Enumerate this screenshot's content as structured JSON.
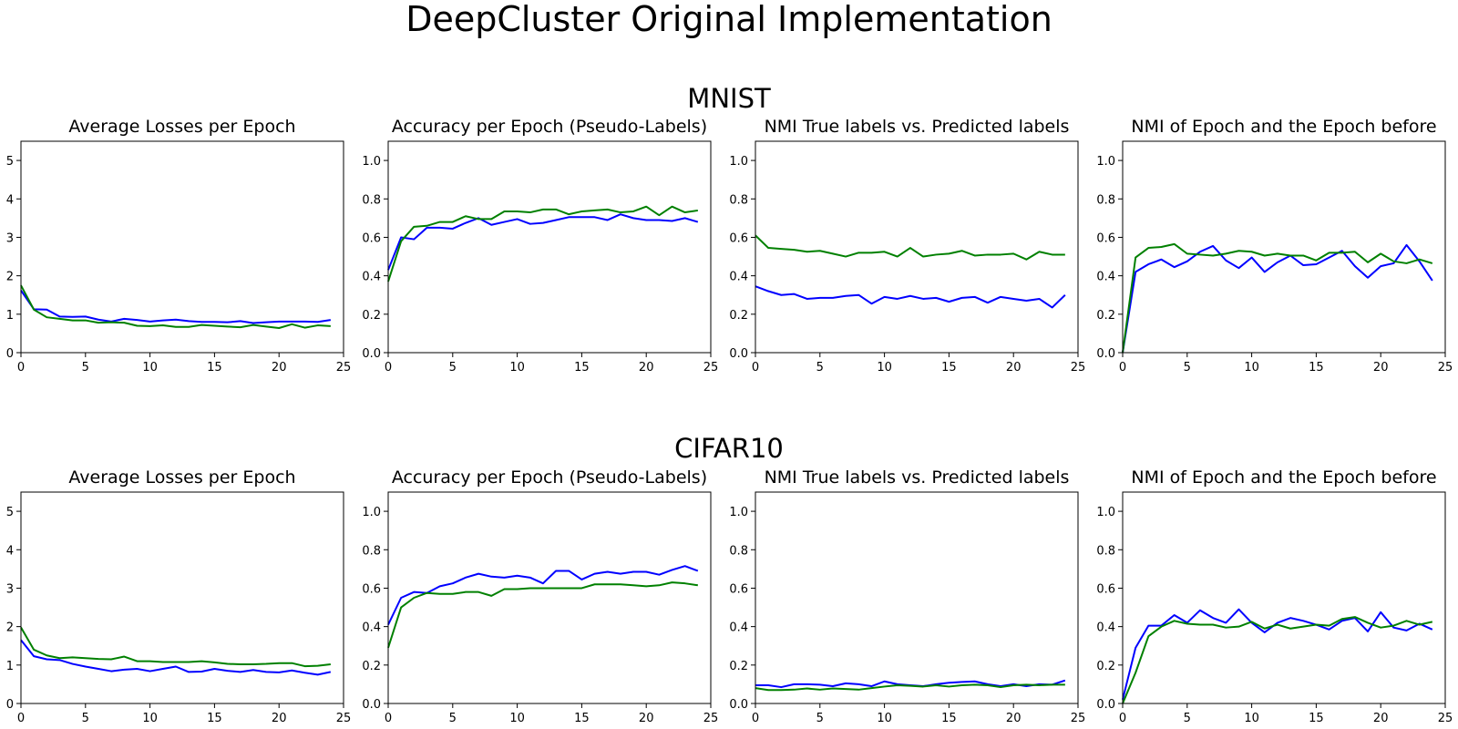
{
  "figure": {
    "title": "DeepCluster Original Implementation",
    "rows": [
      {
        "title": "MNIST"
      },
      {
        "title": "CIFAR10"
      }
    ]
  },
  "colors": {
    "series_a": "#0000ff",
    "series_b": "#008000"
  },
  "chart_data": [
    {
      "type": "line",
      "dataset": "MNIST",
      "title": "Average Losses per Epoch",
      "xlabel": "",
      "ylabel": "",
      "xlim": [
        0,
        25
      ],
      "ylim": [
        0,
        5.5
      ],
      "xticks": [
        "0",
        "5",
        "10",
        "15",
        "20",
        "25"
      ],
      "yticks": [
        "0",
        "1",
        "2",
        "3",
        "4",
        "5"
      ],
      "grid": false,
      "x": [
        0,
        1,
        2,
        3,
        4,
        5,
        6,
        7,
        8,
        9,
        10,
        11,
        12,
        13,
        14,
        15,
        16,
        17,
        18,
        19,
        20,
        21,
        22,
        23,
        24
      ],
      "series": [
        {
          "color": "#0000ff",
          "values": [
            1.62,
            1.13,
            1.12,
            0.94,
            0.93,
            0.94,
            0.86,
            0.81,
            0.88,
            0.85,
            0.81,
            0.84,
            0.86,
            0.82,
            0.8,
            0.8,
            0.79,
            0.82,
            0.77,
            0.79,
            0.81,
            0.81,
            0.81,
            0.8,
            0.85
          ]
        },
        {
          "color": "#008000",
          "values": [
            1.75,
            1.12,
            0.92,
            0.88,
            0.84,
            0.84,
            0.78,
            0.79,
            0.78,
            0.7,
            0.69,
            0.71,
            0.67,
            0.67,
            0.72,
            0.7,
            0.68,
            0.66,
            0.72,
            0.68,
            0.64,
            0.74,
            0.65,
            0.71,
            0.69
          ]
        }
      ]
    },
    {
      "type": "line",
      "dataset": "MNIST",
      "title": "Accuracy per Epoch (Pseudo-Labels)",
      "xlabel": "",
      "ylabel": "",
      "xlim": [
        0,
        25
      ],
      "ylim": [
        0,
        1.1
      ],
      "xticks": [
        "0",
        "5",
        "10",
        "15",
        "20",
        "25"
      ],
      "yticks": [
        "0.0",
        "0.2",
        "0.4",
        "0.6",
        "0.8",
        "1.0"
      ],
      "grid": false,
      "x": [
        0,
        1,
        2,
        3,
        4,
        5,
        6,
        7,
        8,
        9,
        10,
        11,
        12,
        13,
        14,
        15,
        16,
        17,
        18,
        19,
        20,
        21,
        22,
        23,
        24
      ],
      "series": [
        {
          "color": "#0000ff",
          "values": [
            0.43,
            0.6,
            0.59,
            0.65,
            0.65,
            0.645,
            0.675,
            0.7,
            0.665,
            0.68,
            0.695,
            0.67,
            0.675,
            0.69,
            0.705,
            0.705,
            0.705,
            0.69,
            0.72,
            0.7,
            0.69,
            0.69,
            0.685,
            0.7,
            0.68
          ]
        },
        {
          "color": "#008000",
          "values": [
            0.37,
            0.58,
            0.655,
            0.66,
            0.68,
            0.68,
            0.71,
            0.695,
            0.695,
            0.735,
            0.735,
            0.73,
            0.745,
            0.745,
            0.72,
            0.735,
            0.74,
            0.745,
            0.73,
            0.735,
            0.76,
            0.715,
            0.76,
            0.73,
            0.74
          ]
        }
      ]
    },
    {
      "type": "line",
      "dataset": "MNIST",
      "title": "NMI True labels vs. Predicted labels",
      "xlabel": "",
      "ylabel": "",
      "xlim": [
        0,
        25
      ],
      "ylim": [
        0,
        1.1
      ],
      "xticks": [
        "0",
        "5",
        "10",
        "15",
        "20",
        "25"
      ],
      "yticks": [
        "0.0",
        "0.2",
        "0.4",
        "0.6",
        "0.8",
        "1.0"
      ],
      "grid": false,
      "x": [
        0,
        1,
        2,
        3,
        4,
        5,
        6,
        7,
        8,
        9,
        10,
        11,
        12,
        13,
        14,
        15,
        16,
        17,
        18,
        19,
        20,
        21,
        22,
        23,
        24
      ],
      "series": [
        {
          "color": "#0000ff",
          "values": [
            0.345,
            0.32,
            0.3,
            0.305,
            0.28,
            0.285,
            0.285,
            0.295,
            0.3,
            0.255,
            0.29,
            0.28,
            0.295,
            0.28,
            0.285,
            0.265,
            0.285,
            0.29,
            0.26,
            0.29,
            0.28,
            0.27,
            0.28,
            0.235,
            0.3
          ]
        },
        {
          "color": "#008000",
          "values": [
            0.61,
            0.545,
            0.54,
            0.535,
            0.525,
            0.53,
            0.515,
            0.5,
            0.52,
            0.52,
            0.525,
            0.5,
            0.545,
            0.5,
            0.51,
            0.515,
            0.53,
            0.505,
            0.51,
            0.51,
            0.515,
            0.485,
            0.525,
            0.51,
            0.51
          ]
        }
      ]
    },
    {
      "type": "line",
      "dataset": "MNIST",
      "title": "NMI of Epoch and the Epoch before",
      "xlabel": "",
      "ylabel": "",
      "xlim": [
        0,
        25
      ],
      "ylim": [
        0,
        1.1
      ],
      "xticks": [
        "0",
        "5",
        "10",
        "15",
        "20",
        "25"
      ],
      "yticks": [
        "0.0",
        "0.2",
        "0.4",
        "0.6",
        "0.8",
        "1.0"
      ],
      "grid": false,
      "x": [
        0,
        1,
        2,
        3,
        4,
        5,
        6,
        7,
        8,
        9,
        10,
        11,
        12,
        13,
        14,
        15,
        16,
        17,
        18,
        19,
        20,
        21,
        22,
        23,
        24
      ],
      "series": [
        {
          "color": "#0000ff",
          "values": [
            0.0,
            0.42,
            0.46,
            0.485,
            0.445,
            0.475,
            0.525,
            0.555,
            0.48,
            0.44,
            0.495,
            0.42,
            0.47,
            0.505,
            0.455,
            0.46,
            0.495,
            0.53,
            0.45,
            0.39,
            0.45,
            0.465,
            0.56,
            0.475,
            0.375
          ]
        },
        {
          "color": "#008000",
          "values": [
            0.0,
            0.495,
            0.545,
            0.55,
            0.565,
            0.515,
            0.51,
            0.505,
            0.515,
            0.53,
            0.525,
            0.505,
            0.515,
            0.505,
            0.505,
            0.48,
            0.52,
            0.52,
            0.525,
            0.47,
            0.515,
            0.475,
            0.465,
            0.485,
            0.465
          ]
        }
      ]
    },
    {
      "type": "line",
      "dataset": "CIFAR10",
      "title": "Average Losses per Epoch",
      "xlabel": "",
      "ylabel": "",
      "xlim": [
        0,
        25
      ],
      "ylim": [
        0,
        5.5
      ],
      "xticks": [
        "0",
        "5",
        "10",
        "15",
        "20",
        "25"
      ],
      "yticks": [
        "0",
        "1",
        "2",
        "3",
        "4",
        "5"
      ],
      "grid": false,
      "x": [
        0,
        1,
        2,
        3,
        4,
        5,
        6,
        7,
        8,
        9,
        10,
        11,
        12,
        13,
        14,
        15,
        16,
        17,
        18,
        19,
        20,
        21,
        22,
        23,
        24
      ],
      "series": [
        {
          "color": "#0000ff",
          "values": [
            1.65,
            1.23,
            1.15,
            1.13,
            1.03,
            0.96,
            0.9,
            0.84,
            0.88,
            0.9,
            0.84,
            0.9,
            0.96,
            0.82,
            0.83,
            0.9,
            0.85,
            0.82,
            0.87,
            0.82,
            0.81,
            0.86,
            0.8,
            0.75,
            0.82
          ]
        },
        {
          "color": "#008000",
          "values": [
            1.98,
            1.4,
            1.25,
            1.18,
            1.2,
            1.18,
            1.16,
            1.15,
            1.22,
            1.1,
            1.1,
            1.08,
            1.08,
            1.08,
            1.1,
            1.07,
            1.03,
            1.02,
            1.02,
            1.03,
            1.05,
            1.05,
            0.97,
            0.98,
            1.02
          ]
        }
      ]
    },
    {
      "type": "line",
      "dataset": "CIFAR10",
      "title": "Accuracy per Epoch (Pseudo-Labels)",
      "xlabel": "",
      "ylabel": "",
      "xlim": [
        0,
        25
      ],
      "ylim": [
        0,
        1.1
      ],
      "xticks": [
        "0",
        "5",
        "10",
        "15",
        "20",
        "25"
      ],
      "yticks": [
        "0.0",
        "0.2",
        "0.4",
        "0.6",
        "0.8",
        "1.0"
      ],
      "grid": false,
      "x": [
        0,
        1,
        2,
        3,
        4,
        5,
        6,
        7,
        8,
        9,
        10,
        11,
        12,
        13,
        14,
        15,
        16,
        17,
        18,
        19,
        20,
        21,
        22,
        23,
        24
      ],
      "series": [
        {
          "color": "#0000ff",
          "values": [
            0.41,
            0.55,
            0.58,
            0.575,
            0.61,
            0.625,
            0.655,
            0.675,
            0.66,
            0.655,
            0.665,
            0.655,
            0.625,
            0.69,
            0.69,
            0.645,
            0.675,
            0.685,
            0.675,
            0.685,
            0.685,
            0.67,
            0.695,
            0.715,
            0.69
          ]
        },
        {
          "color": "#008000",
          "values": [
            0.29,
            0.5,
            0.55,
            0.575,
            0.57,
            0.57,
            0.58,
            0.58,
            0.56,
            0.595,
            0.595,
            0.6,
            0.6,
            0.6,
            0.6,
            0.6,
            0.62,
            0.62,
            0.62,
            0.615,
            0.61,
            0.615,
            0.63,
            0.625,
            0.615
          ]
        }
      ]
    },
    {
      "type": "line",
      "dataset": "CIFAR10",
      "title": "NMI True labels vs. Predicted labels",
      "xlabel": "",
      "ylabel": "",
      "xlim": [
        0,
        25
      ],
      "ylim": [
        0,
        1.1
      ],
      "xticks": [
        "0",
        "5",
        "10",
        "15",
        "20",
        "25"
      ],
      "yticks": [
        "0.0",
        "0.2",
        "0.4",
        "0.6",
        "0.8",
        "1.0"
      ],
      "grid": false,
      "x": [
        0,
        1,
        2,
        3,
        4,
        5,
        6,
        7,
        8,
        9,
        10,
        11,
        12,
        13,
        14,
        15,
        16,
        17,
        18,
        19,
        20,
        21,
        22,
        23,
        24
      ],
      "series": [
        {
          "color": "#0000ff",
          "values": [
            0.095,
            0.095,
            0.085,
            0.1,
            0.1,
            0.098,
            0.09,
            0.105,
            0.1,
            0.09,
            0.115,
            0.1,
            0.095,
            0.09,
            0.1,
            0.108,
            0.112,
            0.115,
            0.1,
            0.09,
            0.1,
            0.09,
            0.1,
            0.098,
            0.12
          ]
        },
        {
          "color": "#008000",
          "values": [
            0.08,
            0.07,
            0.07,
            0.072,
            0.078,
            0.072,
            0.078,
            0.075,
            0.072,
            0.08,
            0.088,
            0.095,
            0.092,
            0.088,
            0.095,
            0.088,
            0.095,
            0.098,
            0.095,
            0.085,
            0.095,
            0.098,
            0.095,
            0.098,
            0.098
          ]
        }
      ]
    },
    {
      "type": "line",
      "dataset": "CIFAR10",
      "title": "NMI of Epoch and the Epoch before",
      "xlabel": "",
      "ylabel": "",
      "xlim": [
        0,
        25
      ],
      "ylim": [
        0,
        1.1
      ],
      "xticks": [
        "0",
        "5",
        "10",
        "15",
        "20",
        "25"
      ],
      "yticks": [
        "0.0",
        "0.2",
        "0.4",
        "0.6",
        "0.8",
        "1.0"
      ],
      "grid": false,
      "x": [
        0,
        1,
        2,
        3,
        4,
        5,
        6,
        7,
        8,
        9,
        10,
        11,
        12,
        13,
        14,
        15,
        16,
        17,
        18,
        19,
        20,
        21,
        22,
        23,
        24
      ],
      "series": [
        {
          "color": "#0000ff",
          "values": [
            0.02,
            0.29,
            0.405,
            0.405,
            0.46,
            0.42,
            0.485,
            0.445,
            0.42,
            0.49,
            0.42,
            0.37,
            0.42,
            0.445,
            0.43,
            0.41,
            0.385,
            0.43,
            0.445,
            0.375,
            0.475,
            0.395,
            0.38,
            0.415,
            0.385
          ]
        },
        {
          "color": "#008000",
          "values": [
            0.0,
            0.16,
            0.35,
            0.4,
            0.43,
            0.415,
            0.41,
            0.41,
            0.395,
            0.4,
            0.425,
            0.39,
            0.41,
            0.39,
            0.4,
            0.41,
            0.405,
            0.44,
            0.45,
            0.42,
            0.395,
            0.405,
            0.43,
            0.41,
            0.425
          ]
        }
      ]
    }
  ]
}
